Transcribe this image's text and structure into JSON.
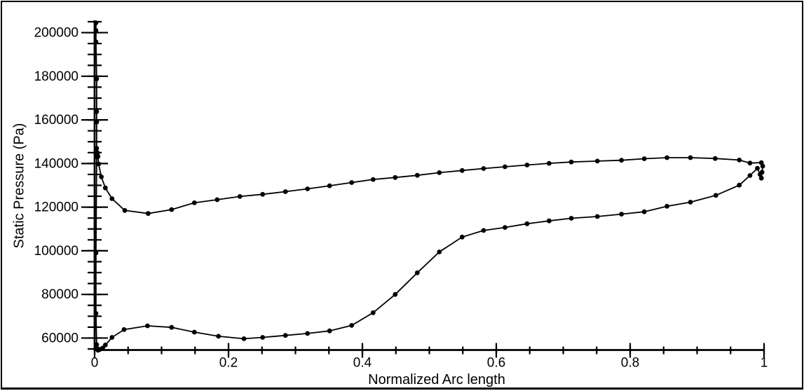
{
  "window": {
    "background_color": "#ffffff",
    "frame_color": "#000000"
  },
  "chart_data": {
    "type": "line",
    "title": "",
    "xlabel": "Normalized Arc length",
    "ylabel": "Static Pressure (Pa)",
    "xlim": [
      0,
      1
    ],
    "ylim": [
      55000,
      205000
    ],
    "grid": false,
    "legend_position": "none",
    "line_color": "#000000",
    "marker": "filled-circle",
    "marker_color": "#000000",
    "x_major_ticks": [
      0,
      0.2,
      0.4,
      0.6,
      0.8,
      1
    ],
    "x_tick_labels": [
      "0",
      "0.2",
      "0.4",
      "0.6",
      "0.8",
      "1"
    ],
    "x_minor_step": 0.05,
    "y_major_ticks": [
      60000,
      80000,
      100000,
      120000,
      140000,
      160000,
      180000,
      200000
    ],
    "y_tick_labels": [
      "60000",
      "80000",
      "100000",
      "120000",
      "140000",
      "160000",
      "180000",
      "200000"
    ],
    "y_minor_step": 5000,
    "series": [
      {
        "name": "static-pressure-surface-loop",
        "points": [
          [
            0.002,
            204500
          ],
          [
            0.002,
            201000
          ],
          [
            0.002,
            195800
          ],
          [
            0.003,
            178800
          ],
          [
            0.003,
            163800
          ],
          [
            0.003,
            159000
          ],
          [
            0.003,
            147000
          ],
          [
            0.004,
            144300
          ],
          [
            0.003,
            143000
          ],
          [
            0.002,
            99000
          ],
          [
            0.002,
            71300
          ],
          [
            0.003,
            57000
          ],
          [
            0.004,
            55200
          ],
          [
            0.005,
            54400
          ],
          [
            0.008,
            54800
          ],
          [
            0.012,
            55400
          ],
          [
            0.016,
            56800
          ],
          [
            0.026,
            60300
          ],
          [
            0.044,
            63900
          ],
          [
            0.079,
            65600
          ],
          [
            0.115,
            64900
          ],
          [
            0.149,
            62700
          ],
          [
            0.185,
            60800
          ],
          [
            0.223,
            59700
          ],
          [
            0.251,
            60300
          ],
          [
            0.285,
            61200
          ],
          [
            0.318,
            62100
          ],
          [
            0.351,
            63300
          ],
          [
            0.384,
            65800
          ],
          [
            0.416,
            71600
          ],
          [
            0.449,
            80000
          ],
          [
            0.482,
            89900
          ],
          [
            0.515,
            99500
          ],
          [
            0.549,
            106300
          ],
          [
            0.581,
            109300
          ],
          [
            0.613,
            110700
          ],
          [
            0.646,
            112400
          ],
          [
            0.679,
            113700
          ],
          [
            0.712,
            114900
          ],
          [
            0.751,
            115700
          ],
          [
            0.787,
            116800
          ],
          [
            0.821,
            117900
          ],
          [
            0.855,
            120400
          ],
          [
            0.89,
            122300
          ],
          [
            0.928,
            125400
          ],
          [
            0.963,
            130100
          ],
          [
            0.979,
            134500
          ],
          [
            0.99,
            137800
          ],
          [
            0.994,
            135000
          ],
          [
            0.996,
            133300
          ],
          [
            0.997,
            136000
          ],
          [
            0.998,
            138800
          ],
          [
            0.996,
            140400
          ],
          [
            0.979,
            140200
          ],
          [
            0.963,
            141600
          ],
          [
            0.927,
            142300
          ],
          [
            0.89,
            142700
          ],
          [
            0.855,
            142700
          ],
          [
            0.821,
            142200
          ],
          [
            0.787,
            141500
          ],
          [
            0.751,
            141100
          ],
          [
            0.712,
            140700
          ],
          [
            0.679,
            140100
          ],
          [
            0.646,
            139300
          ],
          [
            0.613,
            138500
          ],
          [
            0.581,
            137700
          ],
          [
            0.549,
            136800
          ],
          [
            0.515,
            135800
          ],
          [
            0.482,
            134600
          ],
          [
            0.449,
            133600
          ],
          [
            0.416,
            132700
          ],
          [
            0.384,
            131300
          ],
          [
            0.351,
            129800
          ],
          [
            0.318,
            128400
          ],
          [
            0.285,
            127100
          ],
          [
            0.251,
            125900
          ],
          [
            0.217,
            124900
          ],
          [
            0.183,
            123400
          ],
          [
            0.149,
            122000
          ],
          [
            0.115,
            118900
          ],
          [
            0.08,
            117100
          ],
          [
            0.045,
            118500
          ],
          [
            0.026,
            123900
          ],
          [
            0.016,
            128800
          ],
          [
            0.01,
            133900
          ],
          [
            0.006,
            139800
          ],
          [
            0.005,
            143200
          ],
          [
            0.004,
            145000
          ]
        ]
      }
    ]
  }
}
